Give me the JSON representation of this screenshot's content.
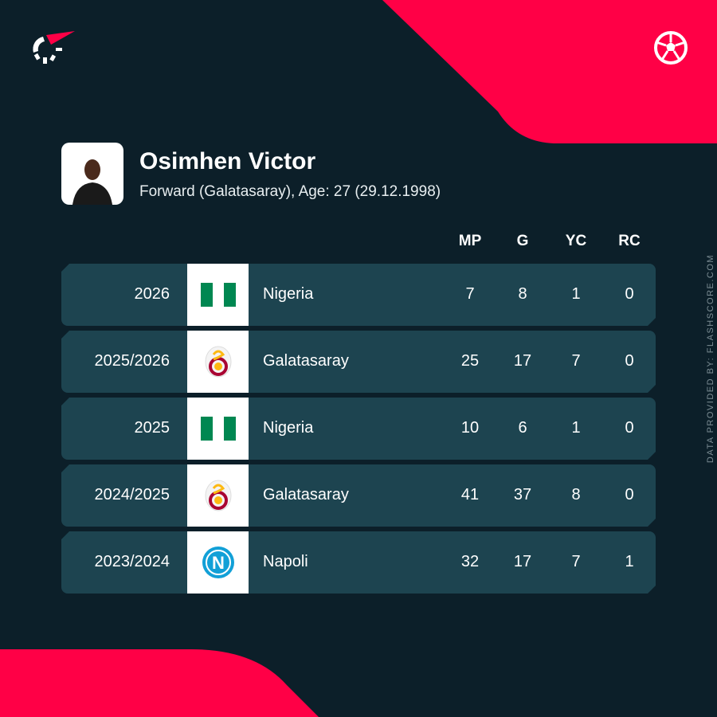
{
  "colors": {
    "background": "#0c1f29",
    "accent": "#ff0046",
    "row": "#1d4450"
  },
  "icons": {
    "brand": "flashscore-logo-icon",
    "sport": "soccer-ball-icon"
  },
  "player": {
    "name": "Osimhen Victor",
    "details": "Forward (Galatasaray), Age: 27 (29.12.1998)"
  },
  "columns": [
    "MP",
    "G",
    "YC",
    "RC"
  ],
  "rows": [
    {
      "season": "2026",
      "team": "Nigeria",
      "logo": "nigeria-flag",
      "mp": "7",
      "g": "8",
      "yc": "1",
      "rc": "0"
    },
    {
      "season": "2025/2026",
      "team": "Galatasaray",
      "logo": "galatasaray-crest",
      "mp": "25",
      "g": "17",
      "yc": "7",
      "rc": "0"
    },
    {
      "season": "2025",
      "team": "Nigeria",
      "logo": "nigeria-flag",
      "mp": "10",
      "g": "6",
      "yc": "1",
      "rc": "0"
    },
    {
      "season": "2024/2025",
      "team": "Galatasaray",
      "logo": "galatasaray-crest",
      "mp": "41",
      "g": "37",
      "yc": "8",
      "rc": "0"
    },
    {
      "season": "2023/2024",
      "team": "Napoli",
      "logo": "napoli-crest",
      "mp": "32",
      "g": "17",
      "yc": "7",
      "rc": "1"
    }
  ],
  "credit": "DATA PROVIDED BY: FLASHSCORE.COM"
}
